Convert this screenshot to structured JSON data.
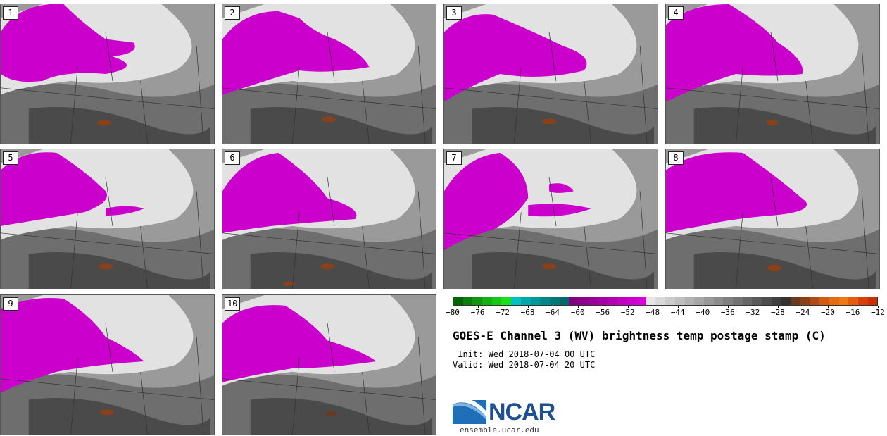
{
  "panels": [
    "1",
    "2",
    "3",
    "4",
    "5",
    "6",
    "7",
    "8",
    "9",
    "10"
  ],
  "colorbar": {
    "colors": [
      "#006400",
      "#0a7d0a",
      "#0e960e",
      "#12b012",
      "#16c816",
      "#1ae01a",
      "#00c0c0",
      "#00a8a8",
      "#009898",
      "#008888",
      "#007878",
      "#006868",
      "#800080",
      "#8c008c",
      "#990099",
      "#a600a6",
      "#b300b3",
      "#c000c0",
      "#cc00cc",
      "#d800d8",
      "#e6e6e6",
      "#d9d9d9",
      "#cccccc",
      "#bfbfbf",
      "#b2b2b2",
      "#a6a6a6",
      "#999999",
      "#8c8c8c",
      "#7f7f7f",
      "#737373",
      "#666666",
      "#595959",
      "#4d4d4d",
      "#404040",
      "#333333",
      "#6b3a1e",
      "#8c4018",
      "#b04a16",
      "#d25a12",
      "#e86a10",
      "#f07812",
      "#e85a0e",
      "#d8400a",
      "#c83008"
    ],
    "ticks": [
      "−80",
      "−76",
      "−72",
      "−68",
      "−64",
      "−60",
      "−56",
      "−52",
      "−48",
      "−44",
      "−40",
      "−36",
      "−32",
      "−28",
      "−24",
      "−20",
      "−16",
      "−12"
    ]
  },
  "title": "GOES-E Channel 3 (WV) brightness temp postage stamp (C)",
  "init": " Init: Wed 2018-07-04 00 UTC",
  "valid": "Valid: Wed 2018-07-04 20 UTC",
  "logo": {
    "name": "NCAR",
    "url": "ensemble.ucar.edu"
  }
}
